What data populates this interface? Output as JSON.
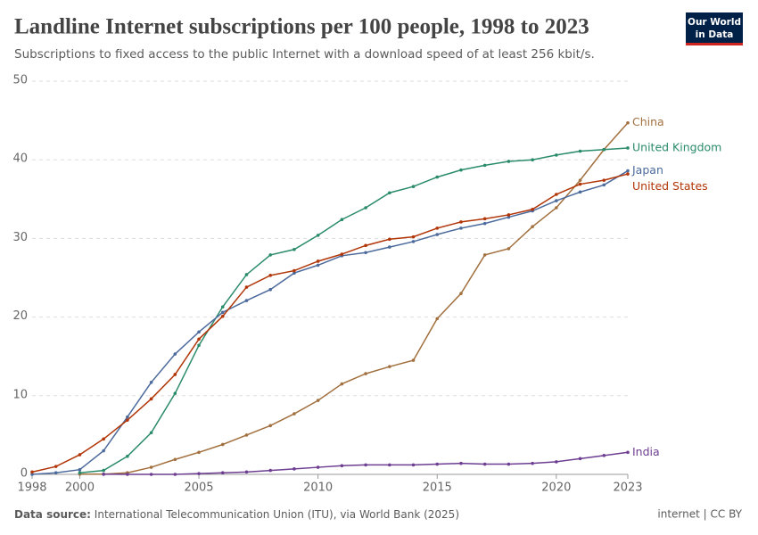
{
  "chart_data": {
    "type": "line",
    "title": "Landline Internet subscriptions per 100 people, 1998 to 2023",
    "subtitle": "Subscriptions to fixed access to the public Internet with a download speed of at least 256 kbit/s.",
    "logo": [
      "Our World",
      "in Data"
    ],
    "source_label": "Data source:",
    "source": "International Telecommunication Union (ITU), via World Bank (2025)",
    "license": "internet | CC BY",
    "x": [
      1998,
      1999,
      2000,
      2001,
      2002,
      2003,
      2004,
      2005,
      2006,
      2007,
      2008,
      2009,
      2010,
      2011,
      2012,
      2013,
      2014,
      2015,
      2016,
      2017,
      2018,
      2019,
      2020,
      2021,
      2022,
      2023
    ],
    "xlim": [
      1998,
      2023
    ],
    "xticks": [
      1998,
      2000,
      2005,
      2010,
      2015,
      2020,
      2023
    ],
    "ylim": [
      0,
      50
    ],
    "yticks": [
      0,
      10,
      20,
      30,
      40,
      50
    ],
    "grid": true,
    "series": [
      {
        "name": "China",
        "color": "#a2703f",
        "values": [
          null,
          null,
          0.03,
          0.03,
          0.2,
          0.9,
          1.9,
          2.8,
          3.8,
          5.0,
          6.2,
          7.7,
          9.4,
          11.5,
          12.8,
          13.7,
          14.5,
          19.8,
          23.0,
          27.9,
          28.7,
          31.5,
          33.9,
          37.4,
          41.3,
          44.7
        ]
      },
      {
        "name": "United Kingdom",
        "color": "#2a8b6b",
        "values": [
          null,
          null,
          0.2,
          0.5,
          2.3,
          5.3,
          10.3,
          16.4,
          21.3,
          25.4,
          27.9,
          28.6,
          30.4,
          32.4,
          33.9,
          35.8,
          36.6,
          37.8,
          38.7,
          39.3,
          39.8,
          40.0,
          40.6,
          41.1,
          41.3,
          41.5
        ]
      },
      {
        "name": "Japan",
        "color": "#4c6a9c",
        "values": [
          0.0,
          0.2,
          0.6,
          3.0,
          7.3,
          11.7,
          15.3,
          18.1,
          20.6,
          22.1,
          23.5,
          25.6,
          26.6,
          27.8,
          28.2,
          28.9,
          29.6,
          30.5,
          31.3,
          31.9,
          32.7,
          33.5,
          34.8,
          35.9,
          36.8,
          38.6
        ]
      },
      {
        "name": "United States",
        "color": "#b13507",
        "values": [
          0.3,
          1.0,
          2.5,
          4.5,
          6.9,
          9.6,
          12.7,
          17.2,
          20.1,
          23.8,
          25.3,
          25.9,
          27.1,
          28.0,
          29.1,
          29.9,
          30.2,
          31.3,
          32.1,
          32.5,
          33.0,
          33.7,
          35.6,
          36.9,
          37.4,
          38.2
        ]
      },
      {
        "name": "India",
        "color": "#6d3e91",
        "values": [
          null,
          null,
          null,
          0.02,
          0.0,
          0.0,
          0.0,
          0.1,
          0.2,
          0.3,
          0.5,
          0.7,
          0.9,
          1.1,
          1.2,
          1.2,
          1.2,
          1.3,
          1.4,
          1.3,
          1.3,
          1.4,
          1.6,
          2.0,
          2.4,
          2.8
        ]
      }
    ]
  }
}
